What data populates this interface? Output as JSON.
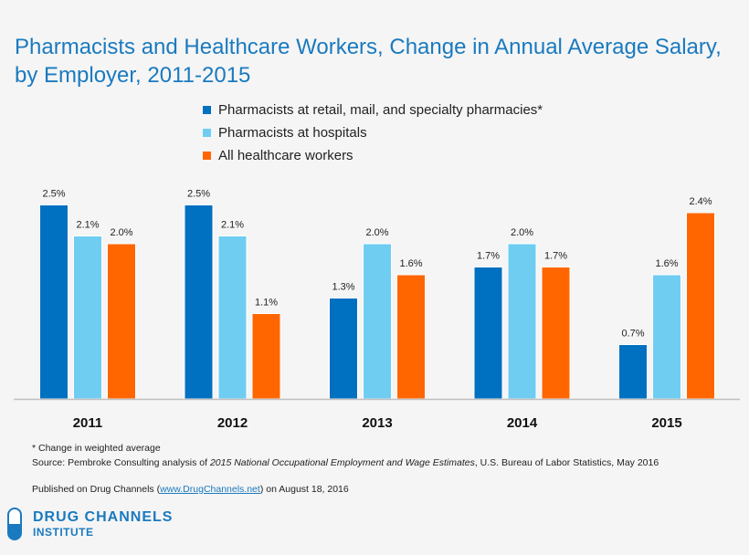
{
  "title_line1": "Pharmacists and Healthcare Workers, Change in Annual Average Salary,",
  "title_line2": "by Employer, 2011-2015",
  "chart_data": {
    "type": "bar",
    "title": "Pharmacists and Healthcare Workers, Change in Annual Average Salary, by Employer, 2011-2015",
    "categories": [
      "2011",
      "2012",
      "2013",
      "2014",
      "2015"
    ],
    "series": [
      {
        "name": "Pharmacists at retail, mail, and specialty pharmacies*",
        "color": "#0070c0",
        "values": [
          2.5,
          2.5,
          1.3,
          1.7,
          0.7
        ],
        "labels": [
          "2.5%",
          "2.5%",
          "1.3%",
          "1.7%",
          "0.7%"
        ]
      },
      {
        "name": "Pharmacists at hospitals",
        "color": "#6fcdf2",
        "values": [
          2.1,
          2.1,
          2.0,
          2.0,
          1.6
        ],
        "labels": [
          "2.1%",
          "2.1%",
          "2.0%",
          "2.0%",
          "1.6%"
        ]
      },
      {
        "name": "All healthcare workers",
        "color": "#ff6600",
        "values": [
          2.0,
          1.1,
          1.6,
          1.7,
          2.4
        ],
        "labels": [
          "2.0%",
          "1.1%",
          "1.6%",
          "1.7%",
          "2.4%"
        ]
      }
    ],
    "ylim": [
      0,
      2.5
    ],
    "grid": false,
    "legend_position": "top"
  },
  "footnote": "* Change in weighted average",
  "source_prefix": "Source: Pembroke Consulting analysis of ",
  "source_italic": "2015 National Occupational Employment and Wage Estimates",
  "source_suffix": ", U.S. Bureau of Labor Statistics, May 2016",
  "published_prefix": "Published on Drug Channels (",
  "published_link": "www.DrugChannels.net",
  "published_suffix": ") on August 18, 2016",
  "logo": {
    "line1": "DRUG CHANNELS",
    "line2": "INSTITUTE"
  }
}
